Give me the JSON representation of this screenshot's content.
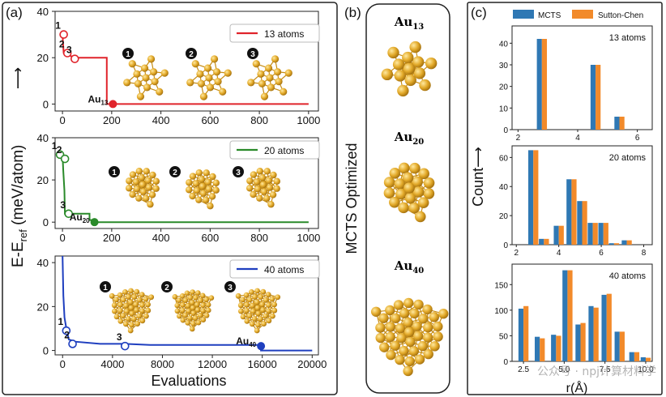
{
  "panel_labels": [
    "(a)",
    "(b)",
    "(c)"
  ],
  "colors": {
    "red": "#e0242b",
    "green": "#2a8a2a",
    "blue": "#1f3fbf",
    "mcts": "#2f78b4",
    "sutton": "#f28a2a",
    "gold": "#e0a826"
  },
  "panel_a": {
    "ylabel": "E-E",
    "ylabel_sub": "ref",
    "ylabel_rest": " (meV/atom)",
    "ylabel_arrow": "⟶",
    "xlabel": "Evaluations",
    "structure_marks": [
      "❶",
      "❷",
      "❸"
    ]
  },
  "panel_b": {
    "title": "MCTS Optimized",
    "labels": [
      {
        "main": "Au",
        "sub": "13"
      },
      {
        "main": "Au",
        "sub": "20"
      },
      {
        "main": "Au",
        "sub": "40"
      }
    ]
  },
  "panel_c": {
    "ylabel": "Count⟶",
    "xlabel": "r(Å)",
    "legend": [
      "MCTS",
      "Sutton-Chen"
    ]
  },
  "watermark": "公众号 · npj计算材料学",
  "chart_data": [
    {
      "type": "line",
      "legend": "13 atoms",
      "color": "#e0242b",
      "xlim": [
        -30,
        1040
      ],
      "ylim": [
        -3,
        40
      ],
      "xticks": [
        0,
        200,
        400,
        600,
        800,
        1000
      ],
      "yticks": [
        0,
        20,
        40
      ],
      "step_line": [
        [
          0,
          30
        ],
        [
          5,
          22
        ],
        [
          50,
          20
        ],
        [
          180,
          20
        ],
        [
          180,
          0
        ],
        [
          1000,
          0
        ]
      ],
      "points": [
        {
          "label": "1",
          "x": 5,
          "y": 30
        },
        {
          "label": "2",
          "x": 20,
          "y": 22
        },
        {
          "label": "3",
          "x": 50,
          "y": 19.5
        }
      ],
      "final": {
        "label": "Au",
        "sub": "13",
        "x": 205,
        "y": 0
      }
    },
    {
      "type": "line",
      "legend": "20 atoms",
      "color": "#2a8a2a",
      "xlim": [
        -30,
        1040
      ],
      "ylim": [
        -3,
        40
      ],
      "xticks": [
        0,
        200,
        400,
        600,
        800,
        1000
      ],
      "yticks": [
        0,
        20,
        40
      ],
      "step_line": [
        [
          0,
          33
        ],
        [
          3,
          25
        ],
        [
          8,
          15
        ],
        [
          10,
          4
        ],
        [
          110,
          4
        ],
        [
          110,
          1
        ],
        [
          125,
          1
        ],
        [
          125,
          0
        ],
        [
          1000,
          0
        ]
      ],
      "points": [
        {
          "label": "1",
          "x": -10,
          "y": 32
        },
        {
          "label": "2",
          "x": 10,
          "y": 30
        },
        {
          "label": "3",
          "x": 25,
          "y": 4
        }
      ],
      "final": {
        "label": "Au",
        "sub": "20",
        "x": 130,
        "y": 0
      }
    },
    {
      "type": "line",
      "legend": "40 atoms",
      "color": "#1f3fbf",
      "xlim": [
        -600,
        20500
      ],
      "ylim": [
        -2,
        43
      ],
      "xticks": [
        0,
        4000,
        8000,
        12000,
        16000,
        20000
      ],
      "yticks": [
        0,
        20,
        40
      ],
      "step_line": [
        [
          0,
          43
        ],
        [
          60,
          25
        ],
        [
          150,
          15
        ],
        [
          300,
          10
        ],
        [
          500,
          5
        ],
        [
          1000,
          4
        ],
        [
          3000,
          3
        ],
        [
          5000,
          3
        ],
        [
          7000,
          2.5
        ],
        [
          10000,
          2.5
        ],
        [
          15900,
          2.5
        ],
        [
          15900,
          0
        ],
        [
          20000,
          0
        ]
      ],
      "points": [
        {
          "label": "1",
          "x": 300,
          "y": 9
        },
        {
          "label": "2",
          "x": 800,
          "y": 3
        },
        {
          "label": "3",
          "x": 5000,
          "y": 2
        }
      ],
      "final": {
        "label": "Au",
        "sub": "40",
        "x": 15900,
        "y": 2
      }
    },
    {
      "type": "bar",
      "legend": "13 atoms",
      "xlim": [
        1.8,
        6.5
      ],
      "ylim": [
        0,
        48
      ],
      "xticks": [
        2,
        4,
        6
      ],
      "yticks": [
        0,
        10,
        20,
        30,
        40
      ],
      "x": [
        2.8,
        4.6,
        5.4
      ],
      "series": [
        {
          "name": "MCTS",
          "values": [
            42,
            30,
            6
          ]
        },
        {
          "name": "Sutton-Chen",
          "values": [
            42,
            30,
            6
          ]
        }
      ]
    },
    {
      "type": "bar",
      "legend": "20 atoms",
      "xlim": [
        1.8,
        8.4
      ],
      "ylim": [
        0,
        68
      ],
      "xticks": [
        2,
        4,
        6,
        8
      ],
      "yticks": [
        0,
        20,
        40,
        60
      ],
      "x": [
        2.8,
        3.3,
        4.0,
        4.6,
        5.1,
        5.6,
        6.1,
        6.6,
        7.2
      ],
      "series": [
        {
          "name": "MCTS",
          "values": [
            65,
            4,
            13,
            45,
            30,
            15,
            15,
            1,
            3
          ]
        },
        {
          "name": "Sutton-Chen",
          "values": [
            65,
            4,
            13,
            45,
            30,
            15,
            15,
            1,
            3
          ]
        }
      ]
    },
    {
      "type": "bar",
      "legend": "40 atoms",
      "xlim": [
        1.8,
        10.4
      ],
      "ylim": [
        0,
        190
      ],
      "xticks": [
        2.5,
        5.0,
        7.5,
        10.0
      ],
      "yticks": [
        0,
        50,
        100,
        150
      ],
      "x": [
        2.5,
        3.5,
        4.5,
        5.2,
        6.0,
        6.8,
        7.6,
        8.4,
        9.3,
        10.0
      ],
      "series": [
        {
          "name": "MCTS",
          "values": [
            103,
            48,
            52,
            178,
            72,
            108,
            130,
            58,
            18,
            8
          ]
        },
        {
          "name": "Sutton-Chen",
          "values": [
            108,
            45,
            50,
            178,
            75,
            105,
            132,
            58,
            18,
            7
          ]
        }
      ]
    }
  ]
}
